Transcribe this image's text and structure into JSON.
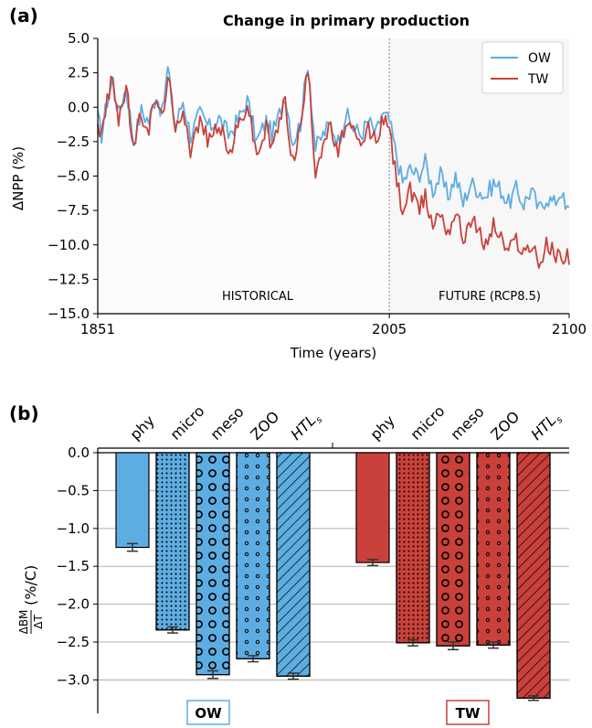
{
  "chart_data": [
    {
      "panel": "(a)",
      "type": "line",
      "title": "Change in primary production",
      "xlabel": "Time (years)",
      "ylabel": "ΔNPP (%)",
      "xlim": [
        1851,
        2100
      ],
      "ylim": [
        -15.0,
        5.0
      ],
      "x_ticks": [
        "1851",
        "2005",
        "2100"
      ],
      "y_ticks": [
        "5.0",
        "2.5",
        "0.0",
        "−2.5",
        "−5.0",
        "−7.5",
        "−10.0",
        "−12.5",
        "−15.0"
      ],
      "vline": 2005,
      "annotations": [
        "HISTORICAL",
        "FUTURE (RCP8.5)"
      ],
      "legend": "top-right",
      "grid": false,
      "series": [
        {
          "name": "OW",
          "color": "#5dade2",
          "keypoints": [
            [
              1851,
              -0.8
            ],
            [
              1853,
              -2.0
            ],
            [
              1856,
              0.5
            ],
            [
              1859,
              2.0
            ],
            [
              1862,
              -0.5
            ],
            [
              1866,
              1.5
            ],
            [
              1870,
              -2.5
            ],
            [
              1874,
              -0.3
            ],
            [
              1878,
              -1.0
            ],
            [
              1882,
              1.0
            ],
            [
              1885,
              -0.5
            ],
            [
              1888,
              2.8
            ],
            [
              1892,
              -1.5
            ],
            [
              1896,
              0.5
            ],
            [
              1900,
              -2.0
            ],
            [
              1905,
              -0.5
            ],
            [
              1910,
              -1.5
            ],
            [
              1915,
              -0.8
            ],
            [
              1920,
              -2.0
            ],
            [
              1925,
              -1.0
            ],
            [
              1930,
              0.5
            ],
            [
              1935,
              -2.5
            ],
            [
              1940,
              -1.0
            ],
            [
              1943,
              -2.0
            ],
            [
              1946,
              -1.0
            ],
            [
              1950,
              1.0
            ],
            [
              1954,
              -2.5
            ],
            [
              1958,
              -1.2
            ],
            [
              1962,
              3.3
            ],
            [
              1966,
              -3.0
            ],
            [
              1970,
              -2.0
            ],
            [
              1974,
              -1.2
            ],
            [
              1978,
              -2.5
            ],
            [
              1982,
              -0.5
            ],
            [
              1986,
              -1.5
            ],
            [
              1990,
              -2.0
            ],
            [
              1994,
              -1.0
            ],
            [
              1998,
              -2.0
            ],
            [
              2001,
              -0.5
            ],
            [
              2005,
              -1.0
            ],
            [
              2008,
              -3.0
            ],
            [
              2012,
              -5.5
            ],
            [
              2016,
              -4.5
            ],
            [
              2020,
              -5.0
            ],
            [
              2024,
              -4.0
            ],
            [
              2028,
              -6.0
            ],
            [
              2032,
              -5.0
            ],
            [
              2036,
              -6.5
            ],
            [
              2040,
              -5.0
            ],
            [
              2044,
              -7.0
            ],
            [
              2048,
              -5.5
            ],
            [
              2052,
              -6.0
            ],
            [
              2056,
              -6.5
            ],
            [
              2060,
              -5.5
            ],
            [
              2064,
              -6.0
            ],
            [
              2068,
              -7.0
            ],
            [
              2072,
              -6.0
            ],
            [
              2076,
              -7.0
            ],
            [
              2080,
              -6.0
            ],
            [
              2084,
              -7.5
            ],
            [
              2088,
              -6.5
            ],
            [
              2092,
              -7.0
            ],
            [
              2096,
              -6.0
            ],
            [
              2098,
              -7.5
            ],
            [
              2100,
              -7.5
            ]
          ]
        },
        {
          "name": "TW",
          "color": "#c9413a",
          "keypoints": [
            [
              1851,
              -1.0
            ],
            [
              1853,
              -2.2
            ],
            [
              1856,
              0.5
            ],
            [
              1859,
              2.1
            ],
            [
              1862,
              -0.8
            ],
            [
              1866,
              1.4
            ],
            [
              1870,
              -3.0
            ],
            [
              1874,
              -0.5
            ],
            [
              1878,
              -1.5
            ],
            [
              1882,
              0.8
            ],
            [
              1885,
              -1.0
            ],
            [
              1888,
              2.6
            ],
            [
              1892,
              -2.0
            ],
            [
              1896,
              0.2
            ],
            [
              1900,
              -3.0
            ],
            [
              1905,
              -1.0
            ],
            [
              1910,
              -2.5
            ],
            [
              1915,
              -1.0
            ],
            [
              1920,
              -3.5
            ],
            [
              1925,
              -1.5
            ],
            [
              1930,
              0.3
            ],
            [
              1935,
              -3.5
            ],
            [
              1940,
              -1.5
            ],
            [
              1943,
              -3.0
            ],
            [
              1946,
              -1.5
            ],
            [
              1950,
              0.5
            ],
            [
              1954,
              -4.0
            ],
            [
              1958,
              -1.5
            ],
            [
              1962,
              2.8
            ],
            [
              1966,
              -4.5
            ],
            [
              1970,
              -2.5
            ],
            [
              1974,
              -1.5
            ],
            [
              1978,
              -3.5
            ],
            [
              1982,
              -1.0
            ],
            [
              1986,
              -2.0
            ],
            [
              1990,
              -3.0
            ],
            [
              1994,
              -1.5
            ],
            [
              1998,
              -2.5
            ],
            [
              2001,
              -1.0
            ],
            [
              2005,
              -1.5
            ],
            [
              2008,
              -4.5
            ],
            [
              2012,
              -7.5
            ],
            [
              2016,
              -6.0
            ],
            [
              2020,
              -7.5
            ],
            [
              2024,
              -6.5
            ],
            [
              2028,
              -8.5
            ],
            [
              2032,
              -7.5
            ],
            [
              2036,
              -9.0
            ],
            [
              2040,
              -7.5
            ],
            [
              2044,
              -9.5
            ],
            [
              2048,
              -8.0
            ],
            [
              2052,
              -9.0
            ],
            [
              2056,
              -10.0
            ],
            [
              2060,
              -8.5
            ],
            [
              2064,
              -9.5
            ],
            [
              2068,
              -10.5
            ],
            [
              2072,
              -9.5
            ],
            [
              2076,
              -10.5
            ],
            [
              2080,
              -10.0
            ],
            [
              2084,
              -11.5
            ],
            [
              2088,
              -10.0
            ],
            [
              2092,
              -10.5
            ],
            [
              2096,
              -11.0
            ],
            [
              2098,
              -10.5
            ],
            [
              2100,
              -10.8
            ]
          ]
        }
      ]
    },
    {
      "panel": "(b)",
      "type": "bar",
      "ylabel_num": "ΔBM",
      "ylabel_den": "ΔT",
      "ylabel_unit": "(%/C)",
      "ylim": [
        -3.2,
        0.0
      ],
      "y_ticks": [
        "0.0",
        "−0.5",
        "−1.0",
        "−1.5",
        "−2.0",
        "−2.5",
        "−3.0"
      ],
      "grid": true,
      "categories": [
        "phy",
        "micro",
        "meso",
        "ZOO",
        "HTL",
        "phy",
        "micro",
        "meso",
        "ZOO",
        "HTL"
      ],
      "htl_subscript": "s",
      "groups": [
        {
          "name": "OW",
          "color": "#5dade2",
          "labels": [
            "phy",
            "micro",
            "meso",
            "ZOO",
            "HTL"
          ],
          "values": [
            -1.25,
            -2.34,
            -2.93,
            -2.72,
            -2.95
          ],
          "errors": [
            0.05,
            0.04,
            0.05,
            0.04,
            0.04
          ],
          "patterns": [
            "none",
            "dots-small",
            "circles-large",
            "circles-small",
            "hatch"
          ]
        },
        {
          "name": "TW",
          "color": "#c9413a",
          "labels": [
            "phy",
            "micro",
            "meso",
            "ZOO",
            "HTL"
          ],
          "values": [
            -1.45,
            -2.51,
            -2.55,
            -2.54,
            -3.24
          ],
          "errors": [
            0.04,
            0.04,
            0.05,
            0.04,
            0.03
          ],
          "patterns": [
            "none",
            "dots-small",
            "circles-large",
            "circles-small",
            "hatch"
          ]
        }
      ]
    }
  ]
}
